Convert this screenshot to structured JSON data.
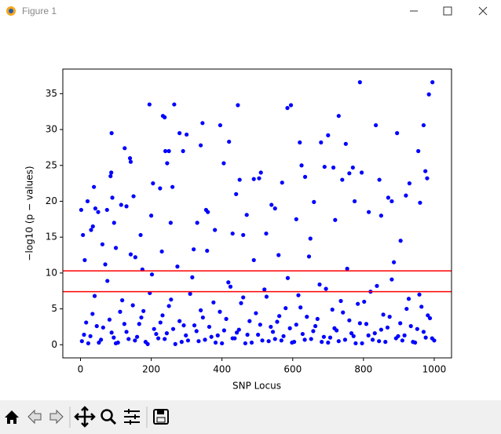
{
  "window": {
    "title": "Figure 1"
  },
  "chart_data": {
    "type": "scatter",
    "xlabel": "SNP Locus",
    "ylabel": "−log10 (p − values)",
    "color": "#0000ff",
    "xlim": [
      -49.95,
      1048.95
    ],
    "ylim": [
      -1.83,
      38.43
    ],
    "xticks": [
      0,
      200,
      400,
      600,
      800,
      1000
    ],
    "yticks": [
      0,
      5,
      10,
      15,
      20,
      25,
      30,
      35
    ],
    "hlines": [
      {
        "value": 10.3,
        "color": "#ff0000"
      },
      {
        "value": 7.4,
        "color": "#ff0000"
      }
    ],
    "x": [
      2,
      7,
      12,
      20,
      30,
      35,
      38,
      42,
      50,
      62,
      75,
      85,
      87,
      88,
      90,
      95,
      100,
      115,
      125,
      130,
      140,
      142,
      150,
      155,
      170,
      175,
      195,
      200,
      205,
      225,
      230,
      233,
      238,
      240,
      245,
      250,
      255,
      260,
      265,
      280,
      290,
      300,
      320,
      330,
      340,
      345,
      355,
      360,
      380,
      395,
      405,
      420,
      430,
      440,
      445,
      450,
      460,
      470,
      490,
      505,
      510,
      525,
      540,
      550,
      560,
      570,
      585,
      595,
      610,
      620,
      625,
      635,
      650,
      660,
      680,
      690,
      700,
      715,
      720,
      730,
      740,
      750,
      760,
      770,
      775,
      790,
      795,
      815,
      835,
      845,
      850,
      870,
      880,
      895,
      905,
      920,
      930,
      955,
      960,
      970,
      975,
      980,
      985,
      995,
      4,
      16,
      28,
      40,
      52,
      64,
      76,
      88,
      100,
      112,
      124,
      136,
      148,
      160,
      172,
      184,
      196,
      208,
      220,
      232,
      244,
      256,
      268,
      280,
      292,
      304,
      316,
      328,
      340,
      352,
      364,
      376,
      388,
      400,
      412,
      424,
      436,
      448,
      460,
      472,
      484,
      496,
      508,
      520,
      532,
      544,
      556,
      568,
      580,
      592,
      604,
      616,
      628,
      640,
      652,
      664,
      676,
      688,
      700,
      712,
      724,
      736,
      748,
      760,
      772,
      784,
      796,
      808,
      820,
      832,
      844,
      856,
      868,
      880,
      892,
      904,
      916,
      928,
      940,
      952,
      964,
      976,
      988,
      1000,
      10,
      22,
      34,
      46,
      58,
      70,
      82,
      94,
      106,
      118,
      130,
      142,
      154,
      166,
      178,
      190,
      202,
      214,
      226,
      238,
      250,
      262,
      274,
      286,
      298,
      310,
      322,
      334,
      346,
      358,
      370,
      382,
      394,
      406,
      418,
      430,
      442,
      454,
      466,
      478,
      490,
      502,
      514,
      526,
      538,
      550,
      562,
      574,
      586,
      598,
      610,
      622,
      634,
      646,
      658,
      670,
      682,
      694,
      706,
      718,
      730,
      742,
      754,
      766,
      778,
      790,
      802,
      814,
      826,
      838,
      850,
      862,
      874,
      886,
      898,
      910,
      922,
      934,
      946,
      958,
      970,
      982,
      994
    ],
    "values": [
      18.8,
      15.3,
      11.8,
      20,
      16,
      16.5,
      22,
      19,
      18.5,
      14,
      18.8,
      23.5,
      24,
      29.5,
      20.5,
      17,
      13.5,
      19.5,
      27.4,
      19.3,
      26,
      25.5,
      20.7,
      12.2,
      15.3,
      10.5,
      33.5,
      18,
      22.5,
      21.8,
      13,
      31.9,
      31.7,
      27,
      25.3,
      27,
      17,
      22,
      33.5,
      29.5,
      27,
      29.3,
      13.3,
      17,
      27.8,
      30.9,
      18.8,
      18.5,
      16,
      30.6,
      25.3,
      28.3,
      15.5,
      21,
      33.4,
      23,
      15.3,
      18.1,
      23.1,
      23.2,
      24,
      15.5,
      19.5,
      19,
      12.5,
      22.6,
      33,
      33.4,
      17.5,
      28.2,
      25,
      23.4,
      14.8,
      19.9,
      28.2,
      24.8,
      29.2,
      24.7,
      17.4,
      31.9,
      23,
      28,
      23.9,
      24.7,
      20,
      36.6,
      24,
      18.5,
      30.6,
      23,
      18,
      20.5,
      20,
      29.5,
      14.5,
      20.8,
      22.5,
      27,
      19.8,
      30.6,
      24.2,
      23.2,
      34.9,
      36.6,
      0.5,
      3.1,
      1.2,
      6.8,
      0.3,
      2.4,
      8.9,
      1.7,
      0.2,
      4.6,
      2.9,
      0.8,
      5.5,
      1.1,
      3.8,
      0.4,
      7.2,
      2.2,
      0.9,
      4.1,
      1.6,
      6.3,
      0.1,
      3.3,
      2.7,
      0.6,
      9.4,
      1.9,
      4.8,
      0.7,
      2.5,
      5.9,
      1.3,
      0.2,
      3.6,
      8.1,
      0.9,
      2.1,
      6.6,
      1.4,
      0.3,
      4.4,
      2.8,
      7.7,
      0.5,
      1.8,
      3.2,
      0.6,
      5.1,
      2.3,
      0.4,
      6.9,
      1.5,
      3.9,
      0.8,
      2.6,
      8.4,
      1.1,
      0.3,
      4.9,
      2.0,
      6.1,
      0.7,
      3.4,
      1.2,
      5.7,
      0.2,
      2.9,
      7.4,
      1.6,
      0.5,
      4.2,
      2.4,
      9.1,
      0.9,
      3.0,
      1.3,
      6.4,
      0.4,
      2.2,
      5.3,
      1.0,
      3.7,
      0.6,
      1.4,
      0.2,
      4.3,
      2.6,
      0.7,
      11.2,
      3.5,
      1.0,
      0.3,
      6.2,
      1.8,
      12.6,
      0.6,
      2.9,
      4.7,
      0.1,
      9.8,
      1.5,
      3.1,
      0.8,
      5.4,
      2.2,
      10.9,
      0.4,
      1.3,
      7.1,
      2.7,
      0.5,
      3.8,
      13.1,
      1.1,
      0.3,
      4.6,
      2.0,
      8.7,
      0.9,
      1.7,
      5.8,
      0.2,
      3.3,
      11.8,
      1.4,
      0.6,
      6.7,
      2.5,
      0.8,
      4.0,
      1.2,
      9.3,
      0.3,
      2.8,
      5.2,
      0.7,
      12.3,
      1.9,
      3.6,
      0.4,
      7.8,
      1.0,
      2.3,
      0.5,
      4.5,
      10.6,
      1.6,
      0.2,
      3.0,
      6.0,
      1.3,
      0.7,
      8.2,
      2.1,
      0.4,
      3.9,
      11.5,
      1.2,
      0.6,
      5.0,
      2.6,
      0.3,
      7.0,
      1.8,
      4.1,
      0.9
    ]
  }
}
